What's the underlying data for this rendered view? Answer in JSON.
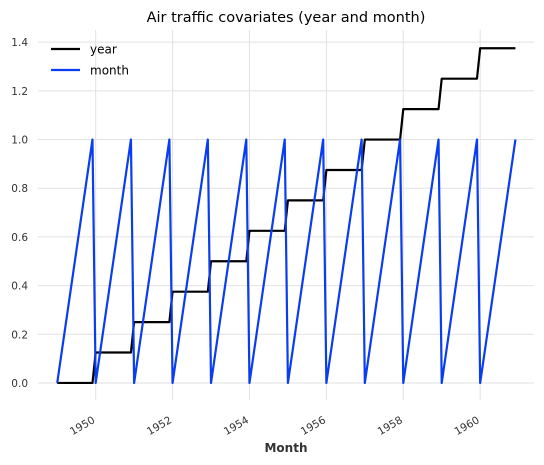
{
  "chart_data": {
    "type": "line",
    "title": "Air traffic covariates (year and month)",
    "xlabel": "Month",
    "ylabel": "",
    "xlim": [
      1948.5,
      1961.4
    ],
    "ylim": [
      -0.07,
      1.45
    ],
    "grid": true,
    "legend_position": "top-left",
    "x_ticks": [
      1950,
      1952,
      1954,
      1956,
      1958,
      1960
    ],
    "x_tick_labels": [
      "1950",
      "1952",
      "1954",
      "1956",
      "1958",
      "1960"
    ],
    "y_ticks": [
      0.0,
      0.2,
      0.4,
      0.6,
      0.8,
      1.0,
      1.2,
      1.4
    ],
    "y_tick_labels": [
      "0.0",
      "0.2",
      "0.4",
      "0.6",
      "0.8",
      "1.0",
      "1.2",
      "1.4"
    ],
    "series": [
      {
        "name": "year",
        "color": "#000000",
        "x": [
          1949.0,
          1949.917,
          1950.0,
          1950.917,
          1951.0,
          1951.917,
          1952.0,
          1952.917,
          1953.0,
          1953.917,
          1954.0,
          1954.917,
          1955.0,
          1955.917,
          1956.0,
          1956.917,
          1957.0,
          1957.917,
          1958.0,
          1958.917,
          1959.0,
          1959.917,
          1960.0,
          1960.917
        ],
        "y": [
          0.0,
          0.0,
          0.125,
          0.125,
          0.25,
          0.25,
          0.375,
          0.375,
          0.5,
          0.5,
          0.625,
          0.625,
          0.75,
          0.75,
          0.875,
          0.875,
          1.0,
          1.0,
          1.125,
          1.125,
          1.25,
          1.25,
          1.375,
          1.375
        ]
      },
      {
        "name": "month",
        "color": "#0a3df0",
        "x": [
          1949.0,
          1949.917,
          1950.0,
          1950.917,
          1951.0,
          1951.917,
          1952.0,
          1952.917,
          1953.0,
          1953.917,
          1954.0,
          1954.917,
          1955.0,
          1955.917,
          1956.0,
          1956.917,
          1957.0,
          1957.917,
          1958.0,
          1958.917,
          1959.0,
          1959.917,
          1960.0,
          1960.917
        ],
        "y": [
          0.0,
          1.0,
          0.0,
          1.0,
          0.0,
          1.0,
          0.0,
          1.0,
          0.0,
          1.0,
          0.0,
          1.0,
          0.0,
          1.0,
          0.0,
          1.0,
          0.0,
          1.0,
          0.0,
          1.0,
          0.0,
          1.0,
          0.0,
          1.0
        ]
      }
    ]
  }
}
